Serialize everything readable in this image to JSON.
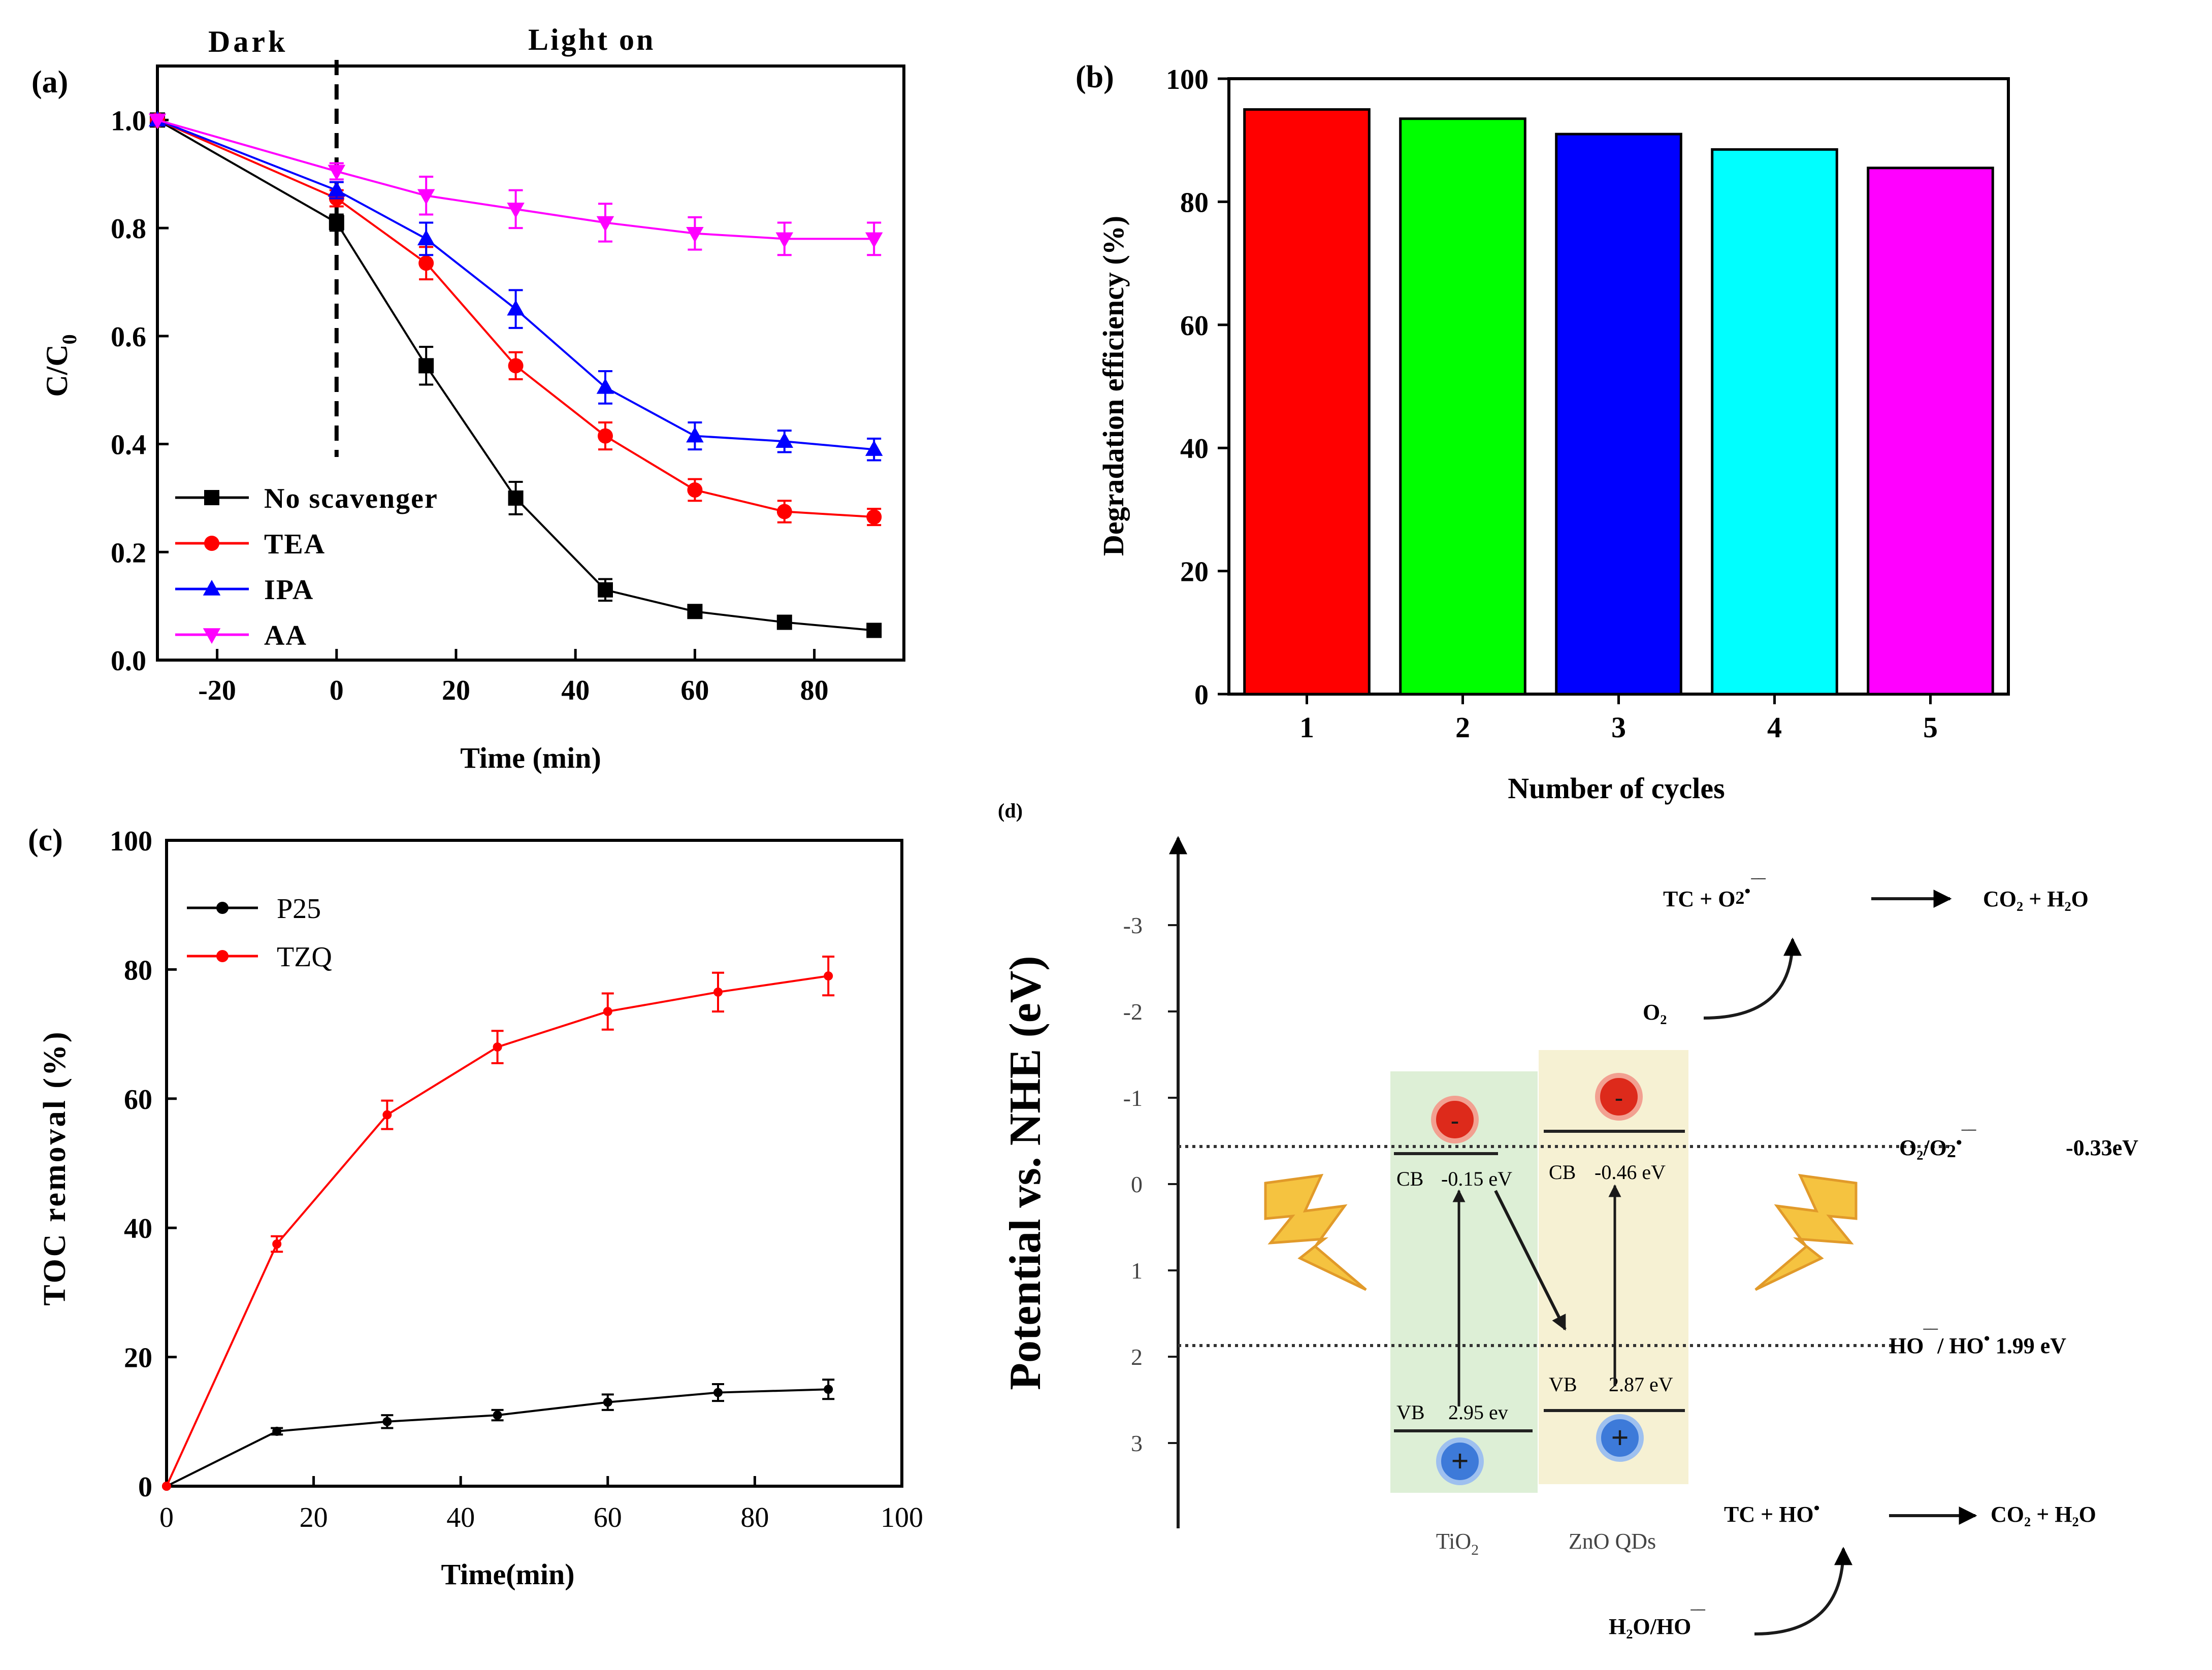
{
  "chart_data": [
    {
      "panel": "(a)",
      "type": "line",
      "xlabel": "Time (min)",
      "ylabel_main": "C/C",
      "ylabel_sub": "0",
      "xlim": [
        -30,
        95
      ],
      "ylim": [
        0.0,
        1.1
      ],
      "xticks": [
        -20,
        0,
        20,
        40,
        60,
        80
      ],
      "yticks": [
        0.0,
        0.2,
        0.4,
        0.6,
        0.8,
        1.0
      ],
      "yticklabels": [
        "0.0",
        "0.2",
        "0.4",
        "0.6",
        "0.8",
        "1.0"
      ],
      "annotations": {
        "dark": "Dark",
        "light": "Light on",
        "divider_x": 0
      },
      "x": [
        -30,
        0,
        15,
        30,
        45,
        60,
        75,
        90
      ],
      "series": [
        {
          "name": "No scavenger",
          "color": "#000000",
          "marker": "square",
          "values": [
            1.0,
            0.81,
            0.545,
            0.3,
            0.13,
            0.09,
            0.07,
            0.055
          ],
          "errors": [
            0,
            0.015,
            0.035,
            0.03,
            0.02,
            0.01,
            0.008,
            0.007
          ]
        },
        {
          "name": "TEA",
          "color": "#ff0000",
          "marker": "circle",
          "values": [
            1.0,
            0.855,
            0.735,
            0.545,
            0.415,
            0.315,
            0.275,
            0.265
          ],
          "errors": [
            0,
            0.015,
            0.03,
            0.025,
            0.025,
            0.02,
            0.02,
            0.015
          ]
        },
        {
          "name": "IPA",
          "color": "#0000ff",
          "marker": "triangle-up",
          "values": [
            1.0,
            0.87,
            0.78,
            0.65,
            0.505,
            0.415,
            0.405,
            0.39
          ],
          "errors": [
            0,
            0.015,
            0.03,
            0.035,
            0.03,
            0.025,
            0.02,
            0.02
          ]
        },
        {
          "name": "AA",
          "color": "#ff00ff",
          "marker": "triangle-down",
          "values": [
            1.0,
            0.905,
            0.86,
            0.835,
            0.81,
            0.79,
            0.78,
            0.78
          ],
          "errors": [
            0,
            0.015,
            0.035,
            0.035,
            0.035,
            0.03,
            0.03,
            0.03
          ]
        }
      ]
    },
    {
      "panel": "(b)",
      "type": "bar",
      "xlabel": "Number of cycles",
      "ylabel": "Degradation efficiency (%)",
      "ylim": [
        0,
        100
      ],
      "yticks": [
        0,
        20,
        40,
        60,
        80,
        100
      ],
      "categories": [
        "1",
        "2",
        "3",
        "4",
        "5"
      ],
      "values": [
        95,
        93.5,
        91,
        88.5,
        85.5
      ],
      "colors": [
        "#ff0000",
        "#00ff00",
        "#0000ff",
        "#00ffff",
        "#ff00ff"
      ]
    },
    {
      "panel": "(c)",
      "type": "line",
      "xlabel": "Time(min)",
      "ylabel": "TOC removal (%)",
      "xlim": [
        0,
        100
      ],
      "ylim": [
        0,
        100
      ],
      "xticks": [
        0,
        20,
        40,
        60,
        80,
        100
      ],
      "yticks": [
        0,
        20,
        40,
        60,
        80,
        100
      ],
      "x": [
        0,
        15,
        30,
        45,
        60,
        75,
        90
      ],
      "series": [
        {
          "name": "P25",
          "color": "#000000",
          "values": [
            0,
            8.5,
            10,
            11,
            13,
            14.5,
            15
          ],
          "errors": [
            0,
            0.5,
            1,
            0.8,
            1.2,
            1.3,
            1.5
          ]
        },
        {
          "name": "TZQ",
          "color": "#ff0000",
          "values": [
            0,
            37.5,
            57.5,
            68,
            73.5,
            76.5,
            79
          ],
          "errors": [
            0,
            1.2,
            2.2,
            2.5,
            2.8,
            3,
            3
          ]
        }
      ]
    }
  ],
  "diagram_d": {
    "panel": "(d)",
    "ylabel": "Potential vs. NHE (eV)",
    "yticks": [
      "-3",
      "-2",
      "-1",
      "0",
      "1",
      "2",
      "3"
    ],
    "tio2": {
      "label": "TiO",
      "label_sub": "2",
      "cb_label": "CB",
      "cb_value": "-0.15 eV",
      "vb_label": "VB",
      "vb_value": "2.95 ev"
    },
    "zno": {
      "label": "ZnO QDs",
      "cb_label": "CB",
      "cb_value": "-0.46 eV",
      "vb_label": "VB",
      "vb_value": "2.87 eV"
    },
    "electron_symbol": "-",
    "hole_symbol": "+",
    "reaction_top_left": "TC +  O",
    "reaction_top_right": "CO₂ + H₂O",
    "o2": "O₂",
    "o2_level_label": "O₂/O",
    "o2_level_value": "-0.33eV",
    "ho_level_left": "HO",
    "ho_level_sep": "/  HO",
    "ho_level_value": "1.99 eV",
    "reaction_bottom_left": "TC + HO",
    "reaction_bottom_right": "CO₂ + H₂O",
    "h2o_ho": "H₂O/HO"
  }
}
